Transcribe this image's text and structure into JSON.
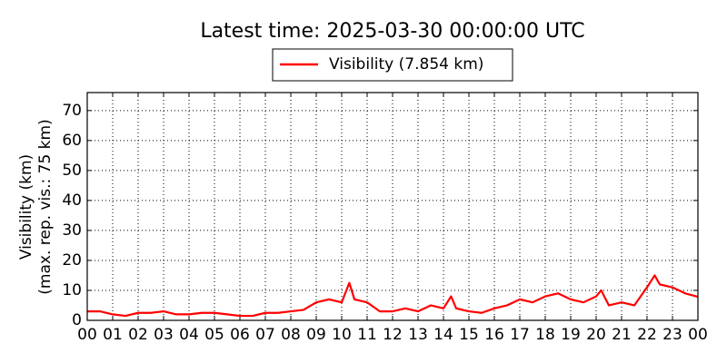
{
  "chart_data": {
    "type": "line",
    "title": "Latest time: 2025-03-30 00:00:00 UTC",
    "ylabel": [
      "Visibility (km)",
      "(max. rep. vis.: 75 km)"
    ],
    "x": [
      0,
      0.5,
      1,
      1.5,
      2,
      2.5,
      3,
      3.5,
      4,
      4.5,
      5,
      5.5,
      6,
      6.5,
      7,
      7.5,
      8,
      8.5,
      9,
      9.5,
      10,
      10.3,
      10.5,
      11,
      11.5,
      12,
      12.5,
      13,
      13.5,
      14,
      14.3,
      14.5,
      15,
      15.5,
      16,
      16.5,
      17,
      17.5,
      18,
      18.5,
      19,
      19.5,
      20,
      20.2,
      20.5,
      21,
      21.5,
      22,
      22.3,
      22.5,
      23,
      23.5,
      24
    ],
    "series": [
      {
        "name": "Visibility (7.854 km)",
        "color": "#ff0000",
        "values": [
          3,
          3,
          2,
          1.5,
          2.5,
          2.5,
          3,
          2,
          2,
          2.5,
          2.5,
          2,
          1.5,
          1.5,
          2.5,
          2.5,
          3,
          3.5,
          6,
          7,
          6,
          12.5,
          7,
          6,
          3,
          3,
          4,
          3,
          5,
          4,
          8,
          4,
          3,
          2.5,
          4,
          5,
          7,
          6,
          8,
          9,
          7,
          6,
          8,
          10,
          5,
          6,
          5,
          11,
          15,
          12,
          11,
          9,
          7.854
        ]
      }
    ],
    "xlim": [
      0,
      24
    ],
    "xticks": [
      {
        "value": 0,
        "label": "00"
      },
      {
        "value": 1,
        "label": "01"
      },
      {
        "value": 2,
        "label": "02"
      },
      {
        "value": 3,
        "label": "03"
      },
      {
        "value": 4,
        "label": "04"
      },
      {
        "value": 5,
        "label": "05"
      },
      {
        "value": 6,
        "label": "06"
      },
      {
        "value": 7,
        "label": "07"
      },
      {
        "value": 8,
        "label": "08"
      },
      {
        "value": 9,
        "label": "09"
      },
      {
        "value": 10,
        "label": "10"
      },
      {
        "value": 11,
        "label": "11"
      },
      {
        "value": 12,
        "label": "12"
      },
      {
        "value": 13,
        "label": "13"
      },
      {
        "value": 14,
        "label": "14"
      },
      {
        "value": 15,
        "label": "15"
      },
      {
        "value": 16,
        "label": "16"
      },
      {
        "value": 17,
        "label": "17"
      },
      {
        "value": 18,
        "label": "18"
      },
      {
        "value": 19,
        "label": "19"
      },
      {
        "value": 20,
        "label": "20"
      },
      {
        "value": 21,
        "label": "21"
      },
      {
        "value": 22,
        "label": "22"
      },
      {
        "value": 23,
        "label": "23"
      },
      {
        "value": 24,
        "label": "00"
      }
    ],
    "ylim": [
      0,
      76
    ],
    "yticks": [
      0,
      10,
      20,
      30,
      40,
      50,
      60,
      70
    ],
    "grid": true
  }
}
